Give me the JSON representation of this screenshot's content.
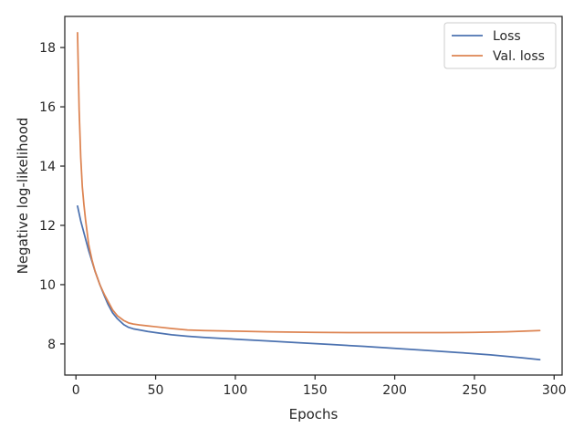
{
  "chart_data": {
    "type": "line",
    "title": "",
    "xlabel": "Epochs",
    "ylabel": "Negative log-likelihood",
    "xlim": [
      -7,
      305
    ],
    "ylim": [
      6.95,
      19.05
    ],
    "xticks": [
      0,
      50,
      100,
      150,
      200,
      250,
      300
    ],
    "yticks": [
      8,
      10,
      12,
      14,
      16,
      18
    ],
    "grid": false,
    "legend": {
      "position": "top-right"
    },
    "series": [
      {
        "name": "Loss",
        "color": "#4c72b0",
        "x": [
          1,
          3,
          5,
          8,
          10,
          12,
          15,
          18,
          20,
          23,
          26,
          30,
          33,
          36,
          40,
          45,
          50,
          60,
          70,
          80,
          90,
          100,
          120,
          140,
          160,
          180,
          200,
          220,
          240,
          260,
          280,
          291
        ],
        "y": [
          12.65,
          12.15,
          11.75,
          11.15,
          10.8,
          10.45,
          10.0,
          9.6,
          9.35,
          9.05,
          8.85,
          8.65,
          8.56,
          8.51,
          8.47,
          8.42,
          8.38,
          8.31,
          8.26,
          8.22,
          8.19,
          8.16,
          8.1,
          8.04,
          7.98,
          7.92,
          7.85,
          7.78,
          7.71,
          7.63,
          7.53,
          7.47
        ]
      },
      {
        "name": "Val. loss",
        "color": "#dd8452",
        "x": [
          1,
          2,
          3,
          4,
          5,
          6,
          8,
          10,
          12,
          15,
          18,
          20,
          23,
          26,
          30,
          33,
          36,
          40,
          45,
          50,
          60,
          70,
          80,
          100,
          120,
          150,
          180,
          200,
          230,
          250,
          270,
          291
        ],
        "y": [
          18.5,
          15.9,
          14.3,
          13.3,
          12.7,
          12.2,
          11.35,
          10.85,
          10.45,
          10.0,
          9.65,
          9.45,
          9.15,
          8.95,
          8.79,
          8.71,
          8.67,
          8.64,
          8.61,
          8.58,
          8.52,
          8.47,
          8.45,
          8.43,
          8.41,
          8.39,
          8.38,
          8.38,
          8.38,
          8.39,
          8.41,
          8.45
        ]
      }
    ]
  }
}
